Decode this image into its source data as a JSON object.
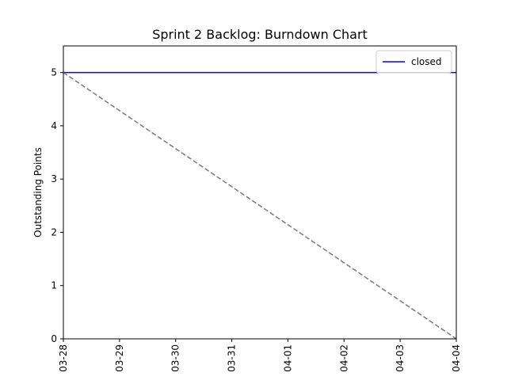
{
  "chart_data": {
    "type": "line",
    "title": "Sprint 2 Backlog: Burndown Chart",
    "xlabel": "",
    "ylabel": "Outstanding Points",
    "x_categories": [
      "03-28",
      "03-29",
      "03-30",
      "03-31",
      "04-01",
      "04-02",
      "04-03",
      "04-04"
    ],
    "ylim": [
      0,
      5.5
    ],
    "yticks": [
      0,
      1,
      2,
      3,
      4,
      5
    ],
    "grid": false,
    "legend_position": "top-right",
    "series": [
      {
        "name": "closed",
        "color": "#0000ff",
        "style": "solid",
        "in_legend": true,
        "x": [
          "03-28",
          "04-04"
        ],
        "y": [
          5,
          5
        ]
      },
      {
        "name": "",
        "color": "#808080",
        "style": "dashed",
        "in_legend": false,
        "x": [
          "03-28",
          "04-04"
        ],
        "y": [
          5,
          0
        ]
      }
    ]
  }
}
